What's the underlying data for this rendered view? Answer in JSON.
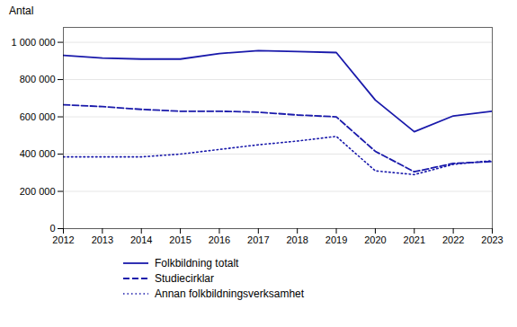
{
  "chart_data": {
    "type": "line",
    "x": [
      2012,
      2013,
      2014,
      2015,
      2016,
      2017,
      2018,
      2019,
      2020,
      2021,
      2022,
      2023
    ],
    "series": [
      {
        "name": "Folkbildning totalt",
        "color": "#1a1aab",
        "line_style": "solid",
        "values": [
          930000,
          915000,
          910000,
          910000,
          940000,
          955000,
          950000,
          945000,
          690000,
          520000,
          605000,
          630000
        ]
      },
      {
        "name": "Studiecirklar",
        "color": "#1a1aab",
        "line_style": "dashed",
        "values": [
          665000,
          655000,
          640000,
          630000,
          630000,
          625000,
          610000,
          600000,
          415000,
          305000,
          350000,
          360000
        ]
      },
      {
        "name": "Annan folkbildningsverksamhet",
        "color": "#1a1aab",
        "line_style": "dotted",
        "values": [
          385000,
          385000,
          385000,
          400000,
          425000,
          450000,
          470000,
          495000,
          310000,
          290000,
          345000,
          365000
        ]
      }
    ],
    "y_label": "Antal",
    "xlim": [
      2012,
      2023
    ],
    "xticks": [
      2012,
      2013,
      2014,
      2015,
      2016,
      2017,
      2018,
      2019,
      2020,
      2021,
      2022,
      2023
    ],
    "ylim": [
      0,
      1080000
    ],
    "yticks": [
      0,
      {
        "value": 200000,
        "label": "200 000"
      },
      {
        "value": 400000,
        "label": "400 000"
      },
      {
        "value": 600000,
        "label": "600 000"
      },
      {
        "value": 800000,
        "label": "800 000"
      },
      {
        "value": 1000000,
        "label": "1 000 000"
      }
    ],
    "grid": true,
    "legend": "bottom"
  }
}
